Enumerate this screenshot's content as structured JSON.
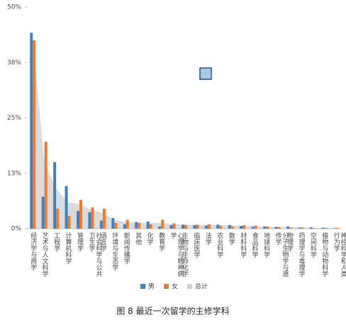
{
  "chart_data": {
    "type": "bar",
    "title": "图 8 最近一次留学的主修学科",
    "categories": [
      "经济学与商学",
      "艺术与人文科学",
      "工程学",
      "计算机科学",
      "管理学",
      "社会科学与公共卫生学",
      "语言学",
      "环境与生态学",
      "新闻传播学",
      "其他",
      "化学",
      "教育学",
      "心理学与精神病学",
      "生物与生命化学",
      "临床医学",
      "法学",
      "农业科学",
      "数学",
      "材料科学",
      "食品科学",
      "地球科学",
      "分子生物学与遗传学",
      "物理学",
      "药理学与毒理学",
      "空间科学",
      "植物与动物科学",
      "神经科学和人类行为学"
    ],
    "series": [
      {
        "name": "男",
        "color": "#3f7fc4",
        "values": [
          44.2,
          7.2,
          15,
          9.6,
          4,
          3.7,
          1.8,
          2.4,
          1,
          1.5,
          1.6,
          0.5,
          0.8,
          0.9,
          0.8,
          0.7,
          0.9,
          0.8,
          0.6,
          0.4,
          0.5,
          0.4,
          0.5,
          0.2,
          0.3,
          0.2,
          0.1
        ]
      },
      {
        "name": "女",
        "color": "#ec7a2b",
        "values": [
          42.5,
          19.6,
          4.5,
          2.9,
          6.5,
          4.8,
          4.5,
          1.3,
          2,
          1.3,
          1,
          2,
          1.2,
          0.8,
          0.9,
          1,
          0.6,
          0.5,
          0.8,
          0.7,
          0.5,
          0.4,
          0.2,
          0.3,
          0.1,
          0.2,
          0.2
        ]
      },
      {
        "name": "总计",
        "color": "#cfcfcf",
        "type": "area",
        "values": [
          43,
          15,
          9,
          6,
          5.5,
          4.3,
          3.5,
          2,
          1.5,
          1.4,
          1.3,
          1.3,
          1,
          0.9,
          0.9,
          0.8,
          0.8,
          0.7,
          0.7,
          0.6,
          0.5,
          0.4,
          0.4,
          0.3,
          0.2,
          0.2,
          0.2
        ]
      }
    ],
    "ylim": [
      0,
      50
    ],
    "yticks": [
      {
        "value": 0,
        "label": "0%"
      },
      {
        "value": 12.5,
        "label": "13%"
      },
      {
        "value": 25,
        "label": "25%"
      },
      {
        "value": 37.5,
        "label": "38%"
      },
      {
        "value": 50,
        "label": "50%"
      }
    ]
  }
}
